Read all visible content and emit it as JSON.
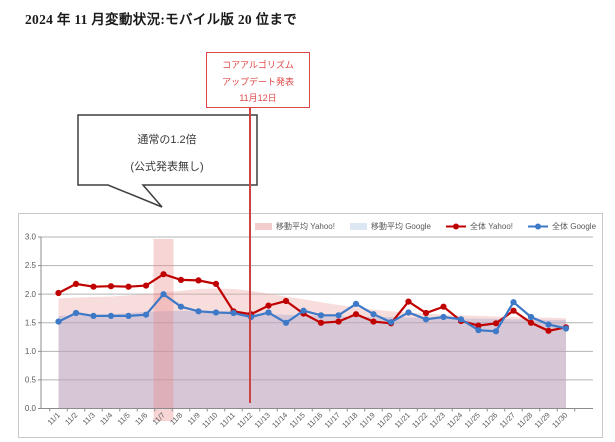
{
  "title": "2024 年 11 月変動状況:モバイル版 20 位まで",
  "callout": {
    "lines": [
      "コアアルゴリズム",
      "アップデート発表",
      "11月12日"
    ],
    "color": "#e04848"
  },
  "speech_bubble": {
    "lines": [
      "通常の1.2倍",
      "(公式発表無し)"
    ]
  },
  "chart_data": {
    "type": "line",
    "title": "",
    "xlabel": "",
    "ylabel": "",
    "ylim": [
      0,
      3
    ],
    "ytick_step": 0.5,
    "ytick_labels": [
      "0.0",
      "0.5",
      "1.0",
      "1.5",
      "2.0",
      "2.5",
      "3.0"
    ],
    "grid": true,
    "legend_position": "top",
    "highlight_band_category": "11/7",
    "highlight_band_color": "rgba(233,126,126,0.33)",
    "event_line_category": "11/12",
    "event_line_color": "#cc4343",
    "categories": [
      "11/1",
      "11/2",
      "11/3",
      "11/4",
      "11/5",
      "11/6",
      "11/7",
      "11/8",
      "11/9",
      "11/10",
      "11/11",
      "11/12",
      "11/13",
      "11/14",
      "11/15",
      "11/16",
      "11/17",
      "11/18",
      "11/19",
      "11/20",
      "11/21",
      "11/22",
      "11/23",
      "11/24",
      "11/25",
      "11/26",
      "11/27",
      "11/28",
      "11/29",
      "11/30"
    ],
    "series": [
      {
        "name": "移動平均 Yahoo!",
        "kind": "area",
        "color": "rgba(238,170,170,0.40)",
        "swatch": "#f3cdcd",
        "values": [
          1.93,
          1.94,
          1.95,
          1.96,
          1.98,
          2.0,
          2.03,
          2.06,
          2.09,
          2.1,
          2.09,
          2.06,
          2.01,
          1.96,
          1.91,
          1.86,
          1.81,
          1.77,
          1.73,
          1.7,
          1.68,
          1.66,
          1.64,
          1.63,
          1.62,
          1.61,
          1.6,
          1.59,
          1.59,
          1.58
        ],
        "interpretation": "moving average Yahoo!"
      },
      {
        "name": "移動平均 Google",
        "kind": "area",
        "color": "rgba(148,156,200,0.33)",
        "swatch": "#dde6f3",
        "values": [
          1.62,
          1.63,
          1.64,
          1.65,
          1.67,
          1.69,
          1.7,
          1.71,
          1.7,
          1.69,
          1.67,
          1.66,
          1.65,
          1.64,
          1.63,
          1.62,
          1.61,
          1.61,
          1.6,
          1.6,
          1.59,
          1.59,
          1.58,
          1.58,
          1.57,
          1.57,
          1.56,
          1.56,
          1.55,
          1.55
        ],
        "interpretation": "moving average Google"
      },
      {
        "name": "全体 Yahoo!",
        "kind": "line",
        "color": "#c00000",
        "values": [
          2.02,
          2.18,
          2.13,
          2.14,
          2.13,
          2.15,
          2.35,
          2.25,
          2.24,
          2.18,
          1.7,
          1.65,
          1.8,
          1.88,
          1.66,
          1.5,
          1.52,
          1.65,
          1.52,
          1.49,
          1.87,
          1.67,
          1.78,
          1.53,
          1.45,
          1.49,
          1.71,
          1.5,
          1.36,
          1.42
        ],
        "interpretation": "overall Yahoo!"
      },
      {
        "name": "全体 Google",
        "kind": "line",
        "color": "#3d79c6",
        "values": [
          1.52,
          1.67,
          1.62,
          1.62,
          1.62,
          1.64,
          2.0,
          1.78,
          1.7,
          1.68,
          1.67,
          1.6,
          1.68,
          1.5,
          1.71,
          1.63,
          1.63,
          1.83,
          1.65,
          1.51,
          1.68,
          1.56,
          1.6,
          1.56,
          1.37,
          1.35,
          1.86,
          1.6,
          1.47,
          1.4
        ],
        "interpretation": "overall Google"
      }
    ]
  }
}
